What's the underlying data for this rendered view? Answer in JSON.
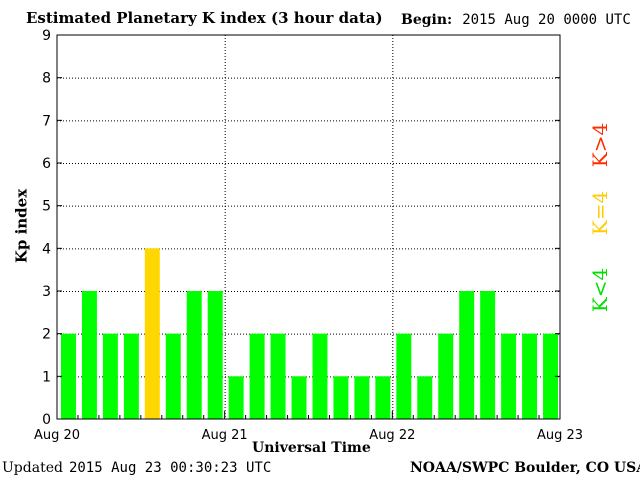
{
  "header": {
    "title": "Estimated Planetary K index (3 hour data)",
    "begin_label": "Begin:",
    "begin_value": "2015 Aug 20 0000 UTC"
  },
  "footer": {
    "updated_label": "Updated",
    "updated_value": "2015 Aug 23 00:30:23 UTC",
    "credit": "NOAA/SWPC Boulder, CO USA"
  },
  "legend": {
    "green": "K<4",
    "yellow": "K=4",
    "red": "K>4"
  },
  "colors": {
    "green": "#00ff00",
    "yellow": "#ffd700",
    "red": "#ff2a00",
    "grid": "#000000"
  },
  "chart_data": {
    "type": "bar",
    "title": "Estimated Planetary K index (3 hour data)",
    "xlabel": "Universal Time",
    "ylabel": "Kp index",
    "ylim": [
      0,
      9
    ],
    "yticks": [
      0,
      1,
      2,
      3,
      4,
      5,
      6,
      7,
      8,
      9
    ],
    "x_tick_labels": [
      "Aug 20",
      "Aug 21",
      "Aug 22",
      "Aug 23"
    ],
    "bar_interval_hours": 3,
    "grid": true,
    "values": [
      2,
      3,
      2,
      2,
      4,
      2,
      3,
      3,
      1,
      2,
      2,
      1,
      2,
      1,
      1,
      1,
      2,
      1,
      2,
      3,
      3,
      2,
      2,
      2
    ]
  }
}
